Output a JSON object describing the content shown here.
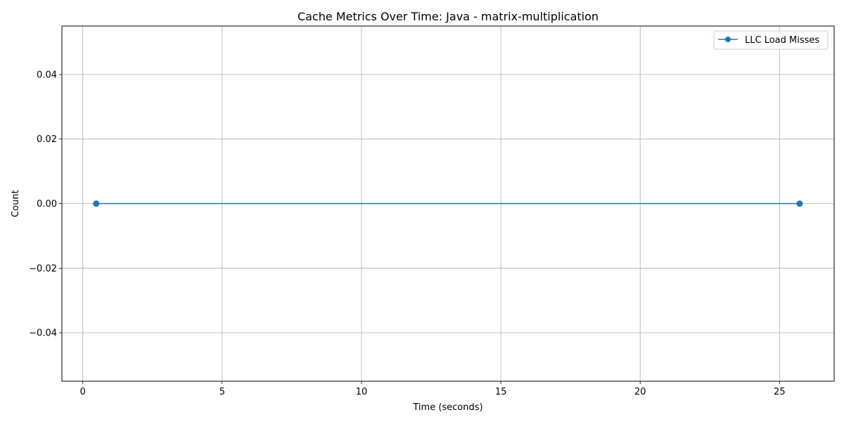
{
  "chart_data": {
    "type": "line",
    "title": "Cache Metrics Over Time: Java - matrix-multiplication",
    "xlabel": "Time (seconds)",
    "ylabel": "Count",
    "xlim": [
      -0.75,
      26.96
    ],
    "ylim": [
      -0.055,
      0.055
    ],
    "x_ticks": [
      0,
      5,
      10,
      15,
      20,
      25
    ],
    "x_tick_labels": [
      "0",
      "5",
      "10",
      "15",
      "20",
      "25"
    ],
    "y_ticks": [
      -0.04,
      -0.02,
      0.0,
      0.02,
      0.04
    ],
    "y_tick_labels": [
      "−0.04",
      "−0.02",
      "0.00",
      "0.02",
      "0.04"
    ],
    "grid": true,
    "legend_position": "upper right",
    "series": [
      {
        "name": "LLC Load Misses",
        "color": "#1f77b4",
        "marker": "circle",
        "x": [
          0.48,
          25.72
        ],
        "y": [
          0,
          0
        ]
      }
    ]
  }
}
